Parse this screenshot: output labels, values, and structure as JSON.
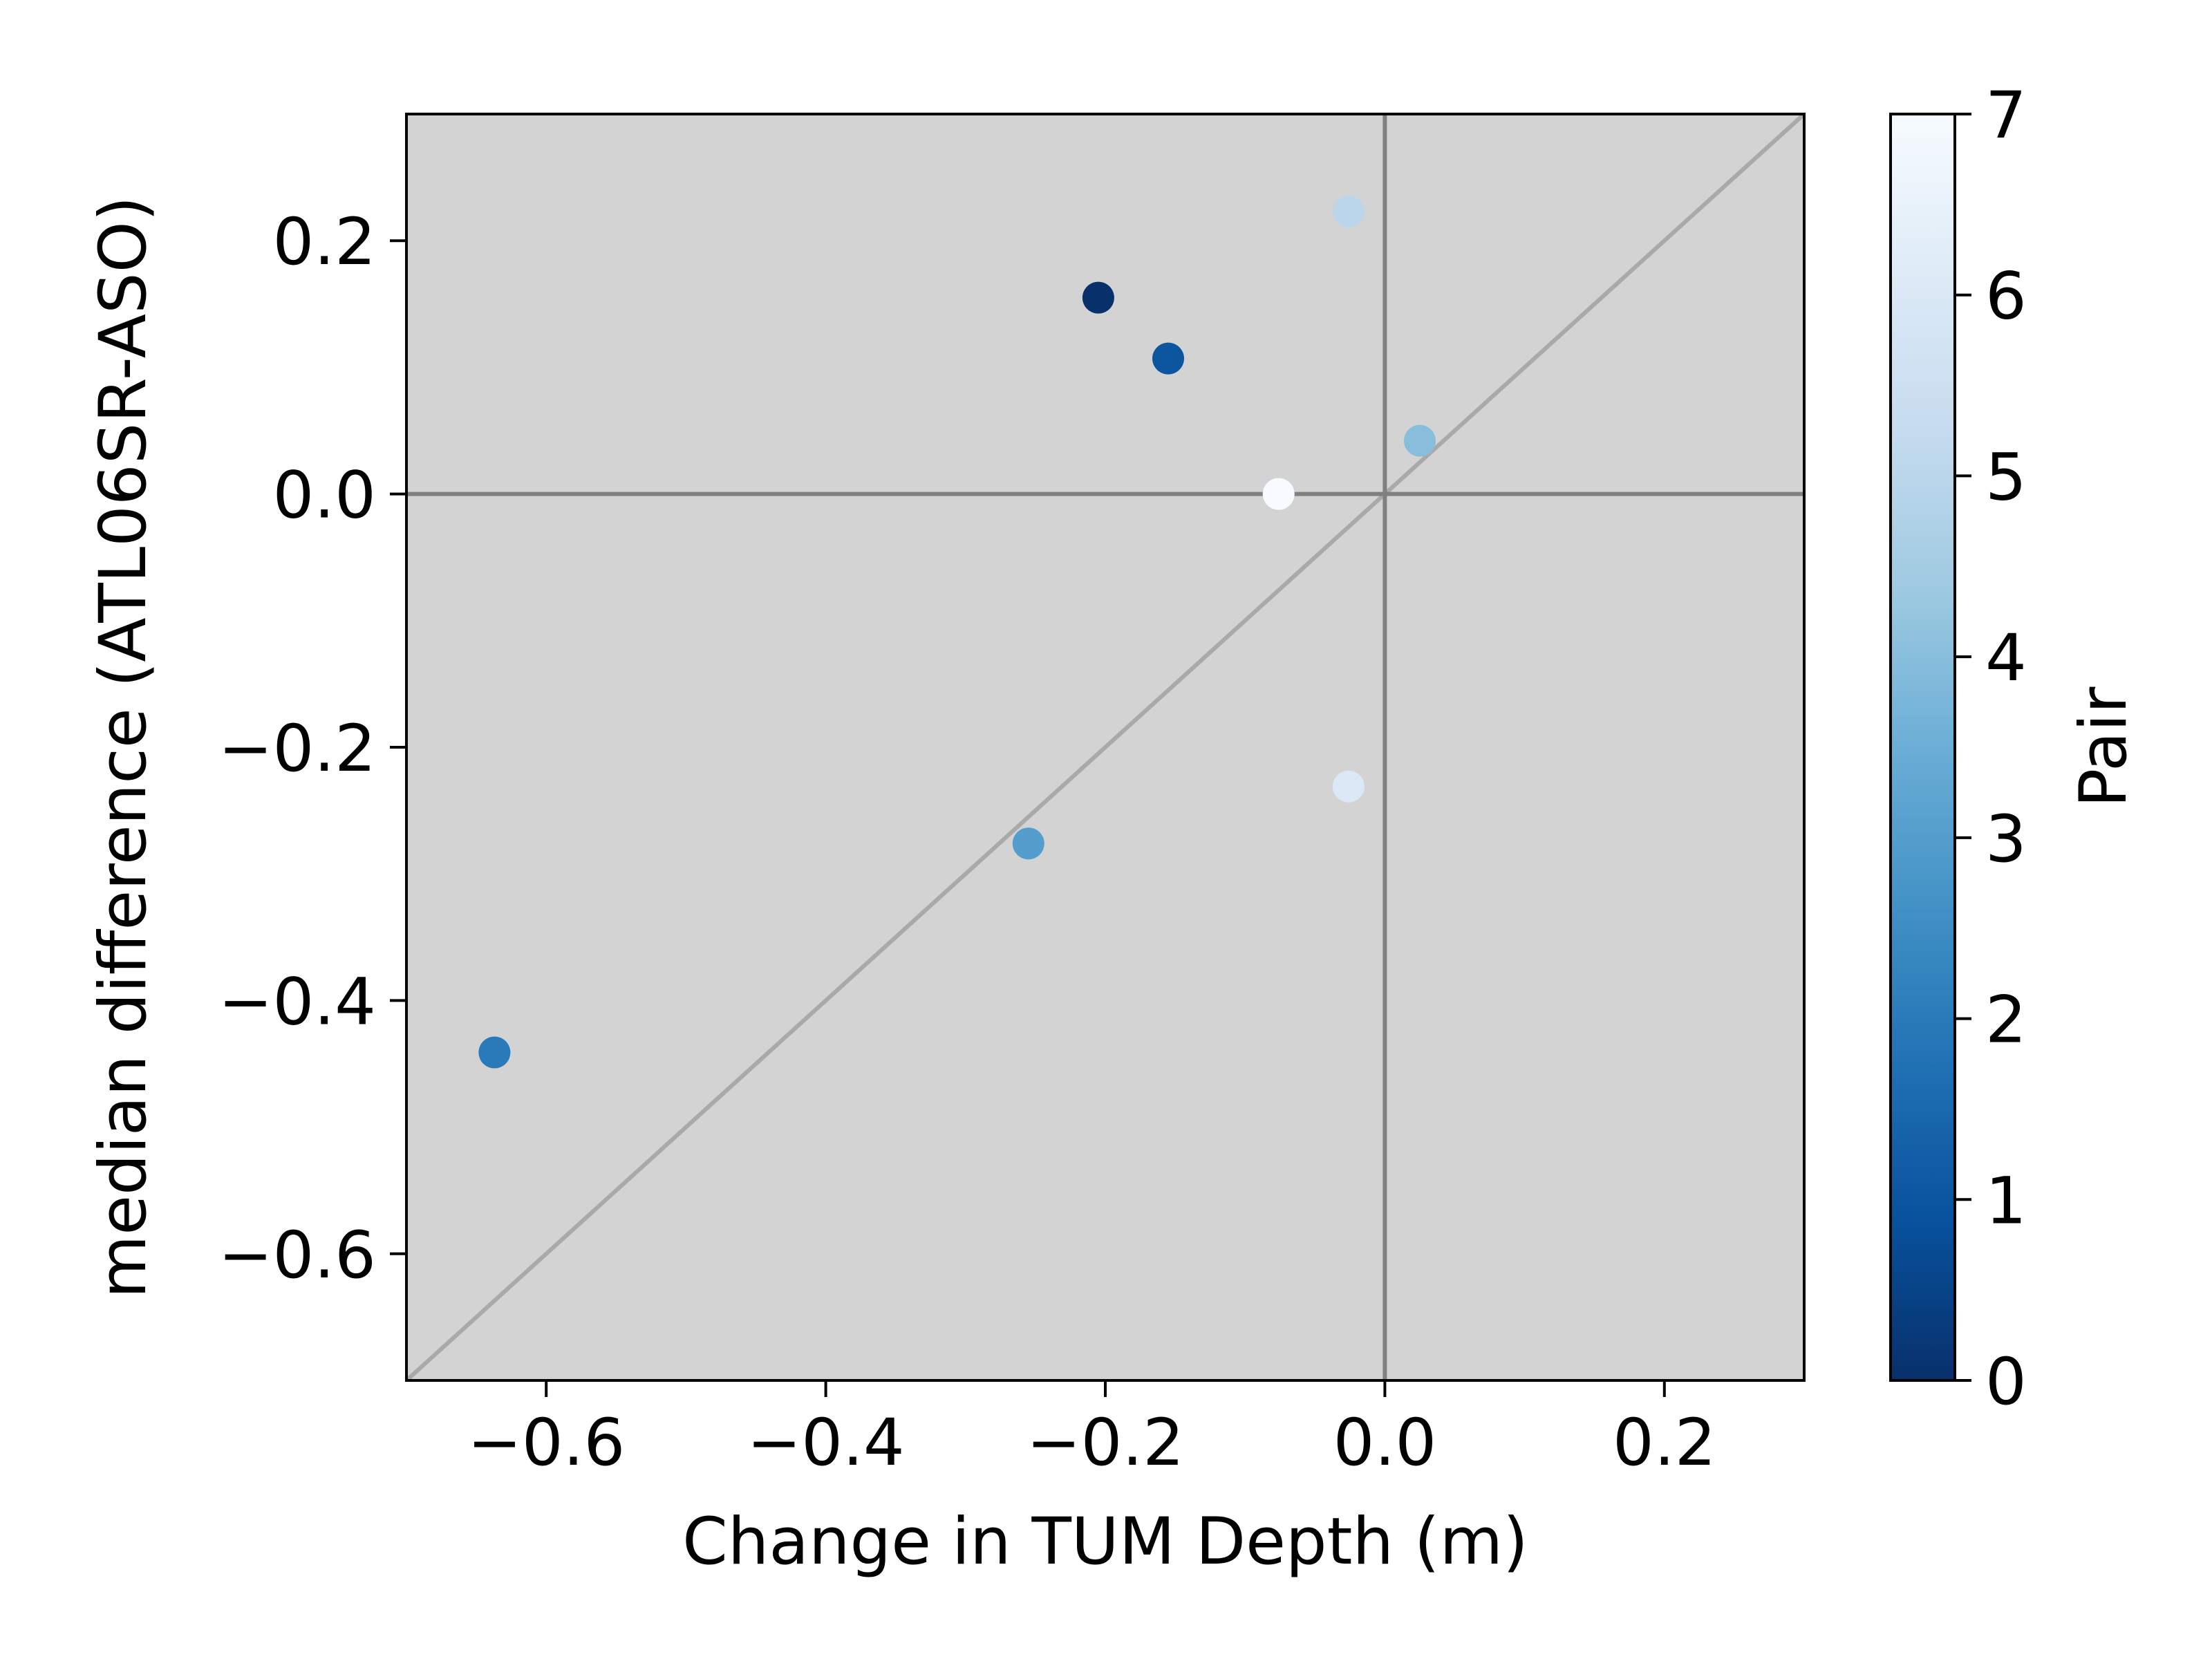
{
  "chart_data": {
    "type": "scatter",
    "xlabel": "Change in TUM Depth (m)",
    "ylabel": "median difference (ATL06SR-ASO)",
    "xlim": [
      -0.7,
      0.3
    ],
    "ylim": [
      -0.7,
      0.3
    ],
    "x_ticks": [
      -0.6,
      -0.4,
      -0.2,
      0.0,
      0.2
    ],
    "x_tick_labels": [
      "−0.6",
      "−0.4",
      "−0.2",
      "0.0",
      "0.2"
    ],
    "y_ticks": [
      -0.6,
      -0.4,
      -0.2,
      0.0,
      0.2
    ],
    "y_tick_labels": [
      "−0.6",
      "−0.4",
      "−0.2",
      "0.0",
      "0.2"
    ],
    "grid": false,
    "background_color": "#d3d3d3",
    "reference_lines": {
      "horizontal_y": 0,
      "vertical_x": 0,
      "one_to_one": true,
      "axes_line_color": "#808080",
      "diagonal_color": "#a9a9a9"
    },
    "colorbar": {
      "label": "Pair",
      "colormap": "Blues_r",
      "range": [
        0,
        7
      ],
      "ticks": [
        0,
        1,
        2,
        3,
        4,
        5,
        6,
        7
      ],
      "tick_labels": [
        "0",
        "1",
        "2",
        "3",
        "4",
        "5",
        "6",
        "7"
      ],
      "colors": [
        "#08306b",
        "#08519c",
        "#2171b5",
        "#4292c6",
        "#6baed6",
        "#9ecae1",
        "#c6dbef",
        "#deebf7",
        "#f7fbff"
      ]
    },
    "points": [
      {
        "pair": 0,
        "x": -0.205,
        "y": 0.155
      },
      {
        "pair": 1,
        "x": -0.155,
        "y": 0.107
      },
      {
        "pair": 2,
        "x": -0.637,
        "y": -0.441
      },
      {
        "pair": 3,
        "x": -0.255,
        "y": -0.276
      },
      {
        "pair": 4,
        "x": 0.025,
        "y": 0.042
      },
      {
        "pair": 5,
        "x": -0.026,
        "y": 0.223
      },
      {
        "pair": 6,
        "x": -0.026,
        "y": -0.231
      },
      {
        "pair": 7,
        "x": -0.076,
        "y": 0.0
      }
    ]
  }
}
